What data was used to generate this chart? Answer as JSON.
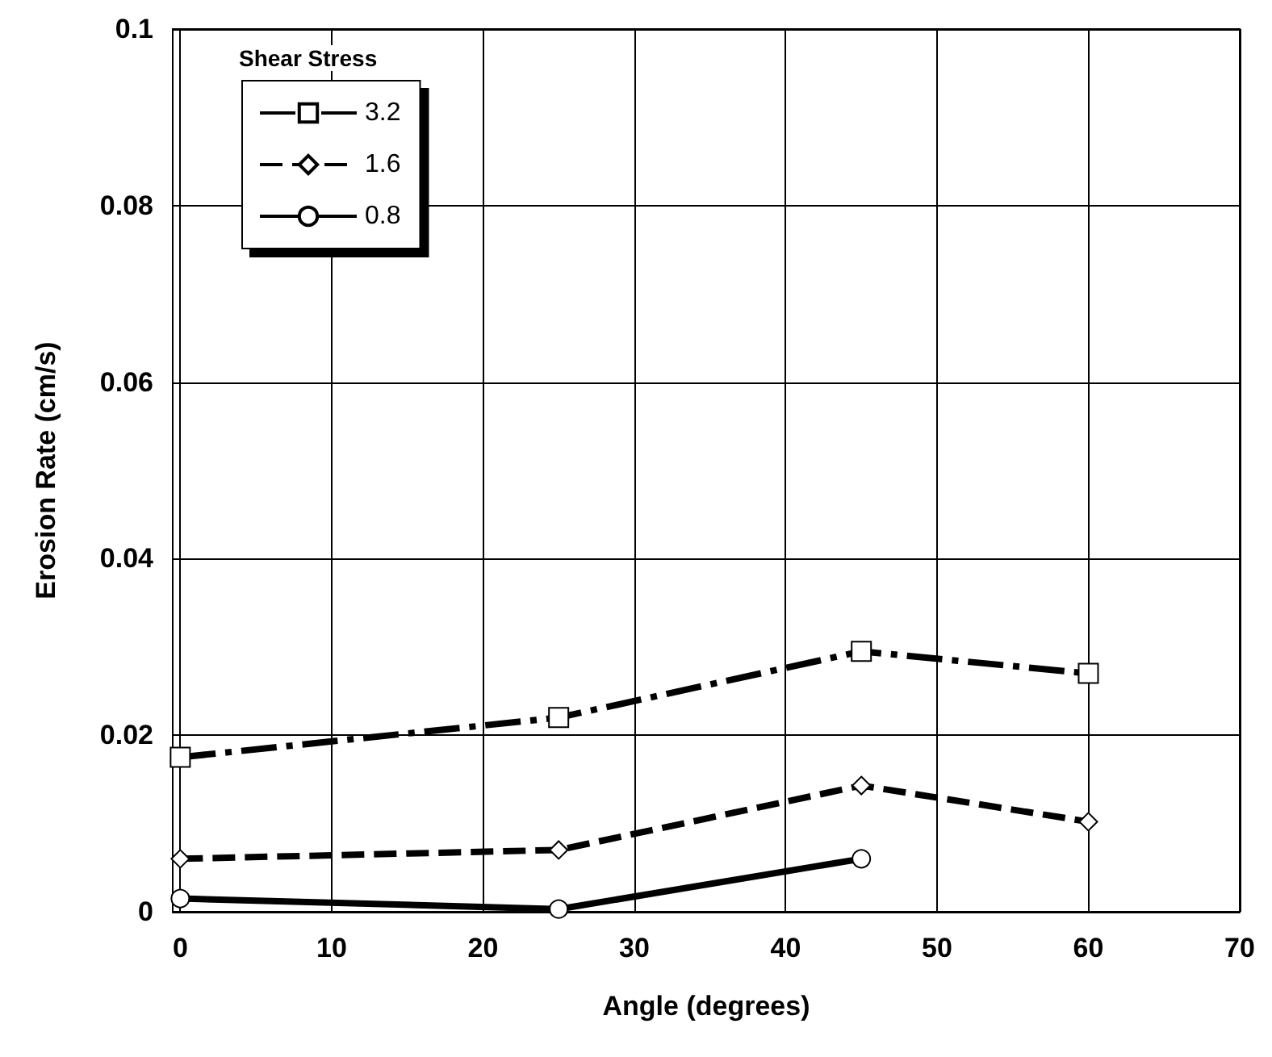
{
  "chart_data": {
    "type": "line",
    "xlabel": "Angle (degrees)",
    "ylabel": "Erosion Rate (cm/s)",
    "legend_title": "Shear Stress",
    "legend": "top left",
    "grid": true,
    "xlim": [
      -0.5,
      70
    ],
    "xticks": [
      0,
      10,
      20,
      30,
      40,
      50,
      60,
      70
    ],
    "ylim": [
      0,
      0.1
    ],
    "yticks": [
      0,
      0.02,
      0.04,
      0.06,
      0.08,
      0.1
    ],
    "series": [
      {
        "name": "3.2",
        "color": "#000000",
        "marker": "square",
        "line_style": "dashdot",
        "x": [
          0,
          25,
          45,
          60
        ],
        "values": [
          0.0175,
          0.022,
          0.0295,
          0.027
        ]
      },
      {
        "name": "1.6",
        "color": "#000000",
        "marker": "diamond",
        "line_style": "dashed",
        "x": [
          0,
          25,
          45,
          60
        ],
        "values": [
          0.006,
          0.007,
          0.0143,
          0.0102
        ]
      },
      {
        "name": "0.8",
        "color": "#000000",
        "marker": "circle",
        "line_style": "solid",
        "x": [
          0,
          25,
          45
        ],
        "values": [
          0.0015,
          0.0003,
          0.006
        ]
      }
    ]
  }
}
